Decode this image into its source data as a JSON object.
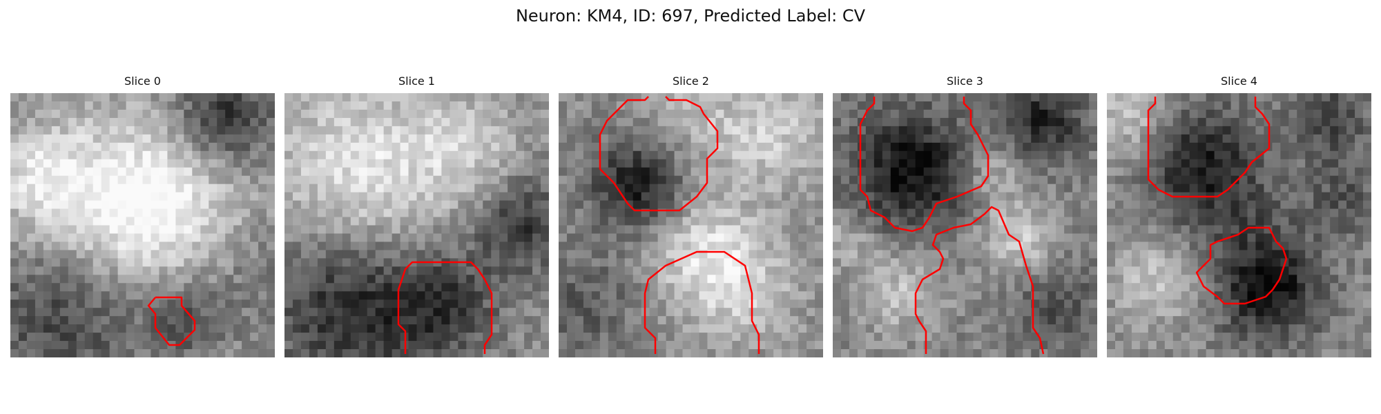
{
  "title": "Neuron: KM4, ID: 697, Predicted Label: CV",
  "contour_color": "#ff0000",
  "panels": [
    {
      "label": "Slice 0"
    },
    {
      "label": "Slice 1"
    },
    {
      "label": "Slice 2"
    },
    {
      "label": "Slice 3"
    },
    {
      "label": "Slice 4"
    }
  ]
}
